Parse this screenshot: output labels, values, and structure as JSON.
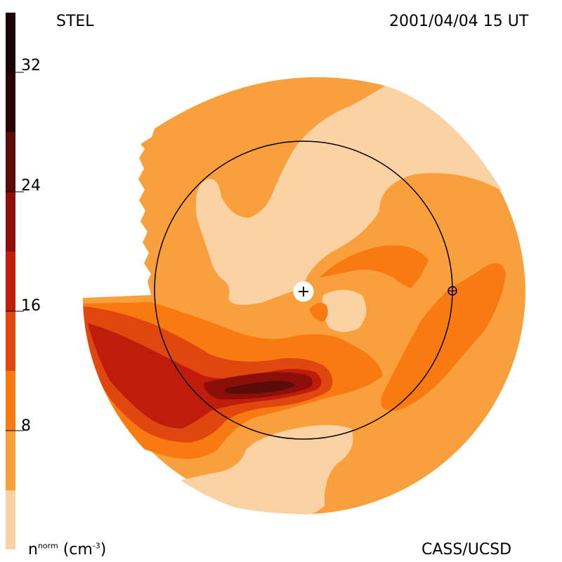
{
  "header": {
    "source_label": "STEL",
    "timestamp": "2001/04/04 15 UT"
  },
  "footer": {
    "credit": "CASS/UCSD",
    "units_prefix": "n",
    "units_sup": "norm",
    "units_unit": "(cm",
    "units_exp": "-3",
    "units_close": ")"
  },
  "colorbar": {
    "ticks": [
      "32",
      "24",
      "16",
      "8"
    ],
    "colors": [
      "#2a0506",
      "#5b0b08",
      "#8c0f0a",
      "#c01c0c",
      "#e0470f",
      "#f97a10",
      "#f9a03c",
      "#fbd2a4"
    ]
  },
  "map": {
    "colors": {
      "lightest": "#fbd2a4",
      "light": "#f9a03c",
      "mid": "#f97a10",
      "midDark": "#e0470f",
      "dark": "#c01c0c",
      "darker": "#8c0f0a",
      "darkest": "#5b0b08"
    },
    "center_marker": "sun-plus-icon",
    "earth_marker": "earth-icon"
  }
}
